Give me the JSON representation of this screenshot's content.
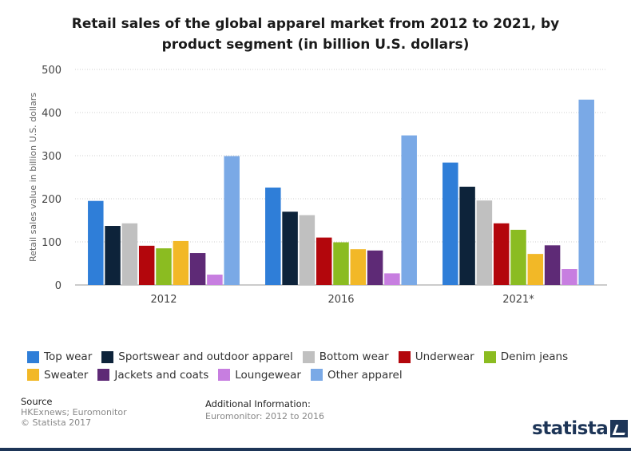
{
  "title_line1": "Retail sales of the global apparel market from 2012 to 2021, by",
  "title_line2": "product segment (in billion U.S. dollars)",
  "chart_data": {
    "type": "bar",
    "categories": [
      "2012",
      "2016",
      "2021*"
    ],
    "ylabel": "Retail sales value in billion U.S. dollars",
    "ylim": [
      0,
      500
    ],
    "yticks": [
      0,
      100,
      200,
      300,
      400,
      500
    ],
    "grid": true,
    "legend_position": "bottom",
    "series": [
      {
        "name": "Top wear",
        "color": "#2f7ed8",
        "values": [
          195,
          226,
          284
        ]
      },
      {
        "name": "Sportswear and outdoor apparel",
        "color": "#0d233a",
        "values": [
          137,
          170,
          228
        ]
      },
      {
        "name": "Bottom wear",
        "color": "#c0c0c0",
        "values": [
          143,
          162,
          196
        ]
      },
      {
        "name": "Underwear",
        "color": "#b3060c",
        "values": [
          91,
          110,
          143
        ]
      },
      {
        "name": "Denim jeans",
        "color": "#8bbc21",
        "values": [
          85,
          99,
          128
        ]
      },
      {
        "name": "Sweater",
        "color": "#f2b827",
        "values": [
          102,
          83,
          72
        ]
      },
      {
        "name": "Jackets and coats",
        "color": "#5e2a76",
        "values": [
          74,
          80,
          92
        ]
      },
      {
        "name": "Loungewear",
        "color": "#c77ee0",
        "values": [
          24,
          27,
          37
        ]
      },
      {
        "name": "Other apparel",
        "color": "#7aa9e6",
        "values": [
          299,
          347,
          430
        ]
      }
    ]
  },
  "footer": {
    "source_heading": "Source",
    "source_line1": "HKExnews; Euromonitor",
    "source_line2": "© Statista 2017",
    "info_heading": "Additional Information:",
    "info_line1": "Euromonitor: 2012 to 2016"
  },
  "brand": "statista"
}
